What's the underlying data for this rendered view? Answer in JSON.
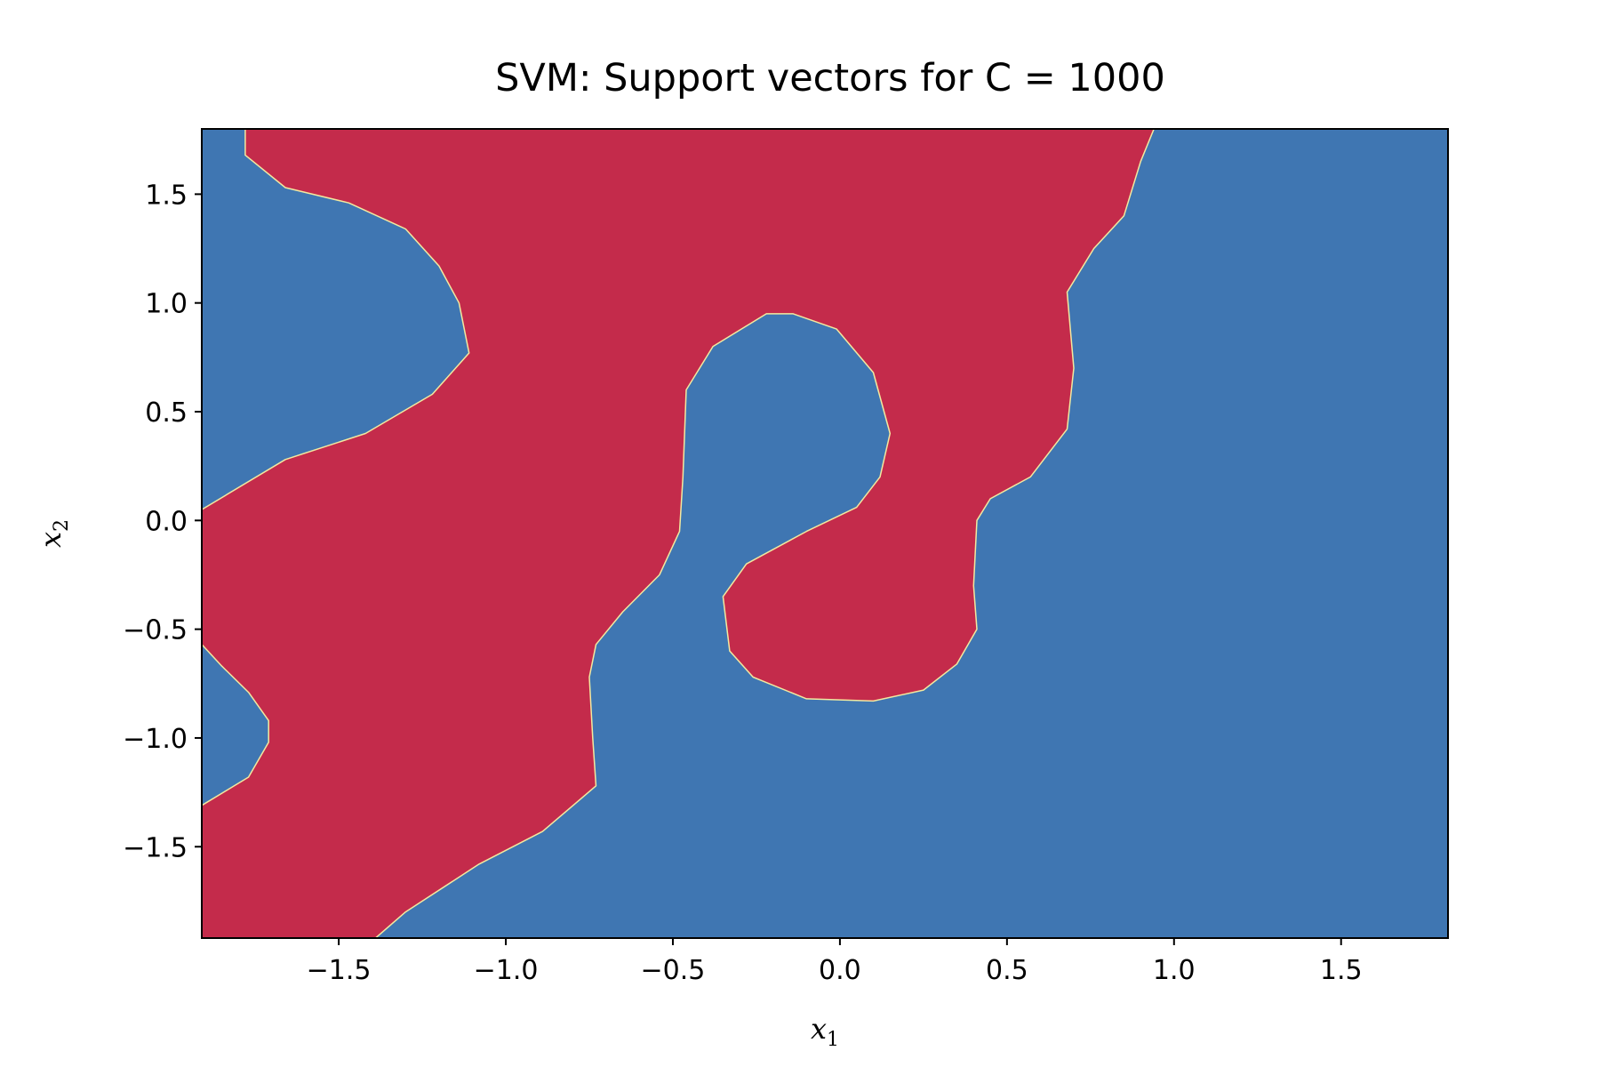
{
  "chart_data": {
    "type": "heatmap",
    "title": "SVM: Support vectors for C = 1000",
    "xlabel": "x",
    "xlabel_sub": "1",
    "ylabel": "x",
    "ylabel_sub": "2",
    "xlim": [
      -1.91,
      1.82
    ],
    "ylim": [
      -1.92,
      1.8
    ],
    "xticks": [
      -1.5,
      -1.0,
      -0.5,
      0.0,
      0.5,
      1.0,
      1.5
    ],
    "xtick_labels": [
      "−1.5",
      "−1.0",
      "−0.5",
      "0.0",
      "0.5",
      "1.0",
      "1.5"
    ],
    "yticks": [
      -1.5,
      -1.0,
      -0.5,
      0.0,
      0.5,
      1.0,
      1.5
    ],
    "ytick_labels": [
      "−1.5",
      "−1.0",
      "−0.5",
      "0.0",
      "0.5",
      "1.0",
      "1.5"
    ],
    "grid": false,
    "colors": {
      "class_pos": "#c42b4b",
      "class_neg": "#3f76b2",
      "boundary": "#f2e9a0"
    },
    "regions": [
      {
        "class": "class_pos",
        "boundary": [
          [
            -1.78,
            1.8
          ],
          [
            -1.78,
            1.68
          ],
          [
            -1.66,
            1.53
          ],
          [
            -1.47,
            1.46
          ],
          [
            -1.3,
            1.34
          ],
          [
            -1.2,
            1.17
          ],
          [
            -1.14,
            1.0
          ],
          [
            -1.11,
            0.77
          ],
          [
            -1.22,
            0.58
          ],
          [
            -1.42,
            0.4
          ],
          [
            -1.66,
            0.28
          ],
          [
            -1.91,
            0.05
          ],
          [
            -1.91,
            -0.57
          ],
          [
            -1.85,
            -0.67
          ],
          [
            -1.77,
            -0.79
          ],
          [
            -1.71,
            -0.92
          ],
          [
            -1.71,
            -1.02
          ],
          [
            -1.77,
            -1.18
          ],
          [
            -1.91,
            -1.31
          ],
          [
            -1.91,
            -1.92
          ],
          [
            -1.39,
            -1.92
          ],
          [
            -1.3,
            -1.8
          ],
          [
            -1.08,
            -1.58
          ],
          [
            -0.89,
            -1.43
          ],
          [
            -0.73,
            -1.22
          ],
          [
            -0.74,
            -1.0
          ],
          [
            -0.75,
            -0.72
          ],
          [
            -0.73,
            -0.57
          ],
          [
            -0.65,
            -0.42
          ],
          [
            -0.54,
            -0.25
          ],
          [
            -0.48,
            -0.05
          ],
          [
            -0.47,
            0.2
          ],
          [
            -0.46,
            0.6
          ],
          [
            -0.38,
            0.8
          ],
          [
            -0.22,
            0.95
          ],
          [
            -0.14,
            0.95
          ],
          [
            -0.01,
            0.88
          ],
          [
            0.1,
            0.68
          ],
          [
            0.15,
            0.4
          ],
          [
            0.12,
            0.2
          ],
          [
            0.05,
            0.06
          ],
          [
            -0.1,
            -0.05
          ],
          [
            -0.28,
            -0.2
          ],
          [
            -0.35,
            -0.35
          ],
          [
            -0.33,
            -0.6
          ],
          [
            -0.26,
            -0.72
          ],
          [
            -0.1,
            -0.82
          ],
          [
            0.1,
            -0.83
          ],
          [
            0.25,
            -0.78
          ],
          [
            0.35,
            -0.66
          ],
          [
            0.41,
            -0.5
          ],
          [
            0.4,
            -0.3
          ],
          [
            0.41,
            0.0
          ],
          [
            0.45,
            0.1
          ],
          [
            0.57,
            0.2
          ],
          [
            0.68,
            0.42
          ],
          [
            0.7,
            0.7
          ],
          [
            0.68,
            1.05
          ],
          [
            0.76,
            1.25
          ],
          [
            0.85,
            1.4
          ],
          [
            0.9,
            1.65
          ],
          [
            0.94,
            1.8
          ]
        ]
      }
    ]
  }
}
